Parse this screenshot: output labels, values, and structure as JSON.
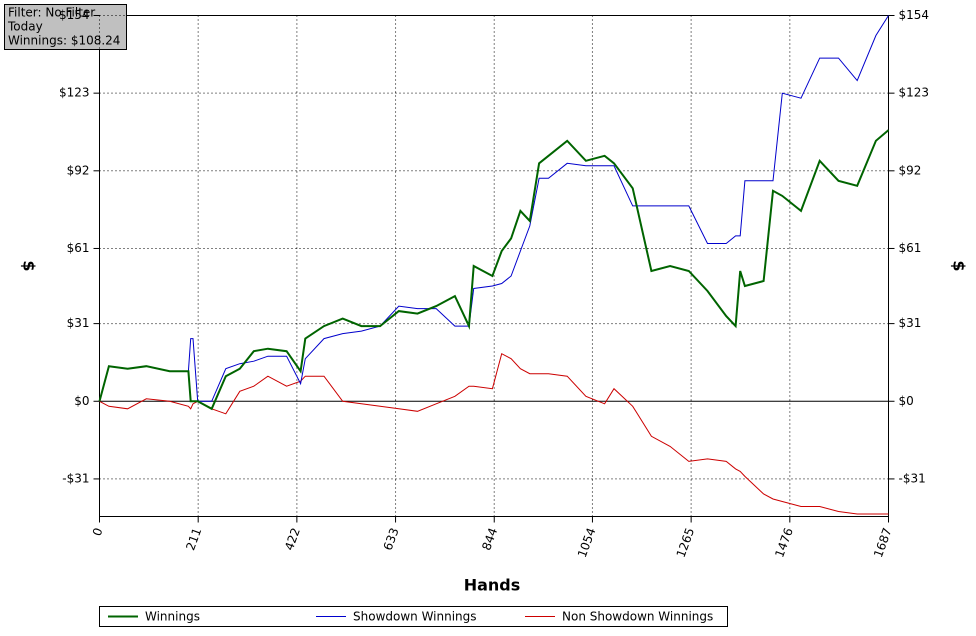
{
  "chart_data": {
    "type": "line",
    "info_box": [
      "Filter: No Filter",
      "Today",
      "Winnings: $108.24"
    ],
    "xlabel": "Hands",
    "ylabel": "$",
    "x": [
      0,
      20,
      60,
      100,
      150,
      190,
      195,
      200,
      210,
      240,
      270,
      300,
      330,
      360,
      400,
      430,
      440,
      480,
      520,
      560,
      600,
      640,
      680,
      720,
      760,
      790,
      800,
      840,
      860,
      880,
      900,
      920,
      940,
      960,
      1000,
      1040,
      1080,
      1100,
      1140,
      1180,
      1220,
      1260,
      1300,
      1340,
      1360,
      1370,
      1380,
      1420,
      1440,
      1460,
      1500,
      1540,
      1580,
      1620,
      1660,
      1687
    ],
    "series": [
      {
        "name": "Winnings",
        "color": "#006400",
        "width": 2,
        "values": [
          0,
          14,
          13,
          14,
          12,
          12,
          0,
          0,
          0,
          -3,
          10,
          13,
          20,
          21,
          20,
          12,
          25,
          30,
          33,
          30,
          30,
          36,
          35,
          38,
          42,
          30,
          54,
          50,
          60,
          65,
          76,
          72,
          95,
          98,
          104,
          96,
          98,
          95,
          85,
          52,
          54,
          52,
          44,
          34,
          30,
          52,
          46,
          48,
          84,
          82,
          76,
          96,
          88,
          86,
          104,
          108.24
        ]
      },
      {
        "name": "Showdown Winnings",
        "color": "#0000cc",
        "width": 1,
        "values": [
          0,
          14,
          13,
          14,
          12,
          12,
          25,
          25,
          0,
          0,
          13,
          15,
          16,
          18,
          18,
          7,
          17,
          25,
          27,
          28,
          30,
          38,
          37,
          37,
          30,
          30,
          45,
          46,
          47,
          50,
          60,
          70,
          89,
          89,
          95,
          94,
          94,
          94,
          78,
          78,
          78,
          78,
          63,
          63,
          66,
          66,
          88,
          88,
          88,
          123,
          121,
          137,
          137,
          128,
          146,
          154
        ]
      },
      {
        "name": "Non Showdown Winnings",
        "color": "#cc0000",
        "width": 1,
        "values": [
          0,
          -2,
          -3,
          1,
          0,
          -2,
          -3,
          -1,
          0,
          -3,
          -5,
          4,
          6,
          10,
          6,
          8,
          10,
          10,
          0,
          -1,
          -2,
          -3,
          -4,
          -1,
          2,
          6,
          6,
          5,
          19,
          17,
          13,
          11,
          11,
          11,
          10,
          2,
          -1,
          5,
          -2,
          -14,
          -18,
          -24,
          -23,
          -24,
          -27,
          -28,
          -30,
          -37,
          -39,
          -40,
          -42,
          -42,
          -44,
          -45,
          -45,
          -45
        ]
      }
    ],
    "xlim": [
      0,
      1687
    ],
    "xticks": [
      0,
      211,
      422,
      633,
      844,
      1054,
      1265,
      1476,
      1687
    ],
    "ylim": [
      -46,
      154
    ],
    "yticks": [
      {
        "value": -31,
        "label": "-$31"
      },
      {
        "value": 0,
        "label": "$0"
      },
      {
        "value": 31,
        "label": "$31"
      },
      {
        "value": 61,
        "label": "$61"
      },
      {
        "value": 92,
        "label": "$92"
      },
      {
        "value": 123,
        "label": "$123"
      },
      {
        "value": 154,
        "label": "$154"
      }
    ],
    "grid": true
  }
}
